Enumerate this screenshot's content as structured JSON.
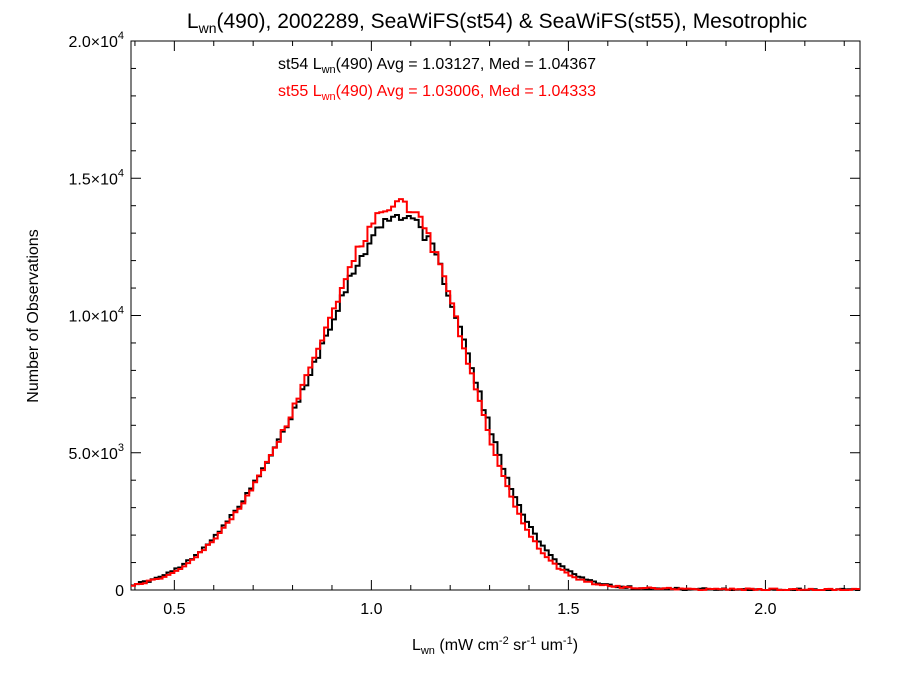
{
  "chart_data": {
    "type": "histogram-step",
    "title": {
      "pre": "L",
      "sub": "wn",
      "post": "(490), 2002289, SeaWiFS(st54) & SeaWiFS(st55), Mesotrophic"
    },
    "xlabel": {
      "pre": "L",
      "sub": "wn",
      "mid1": " (mW cm",
      "sup1": "-2",
      "mid2": " sr",
      "sup2": "-1",
      "mid3": " um",
      "sup3": "-1",
      "post": ")"
    },
    "ylabel": "Number of Observations",
    "xlim": [
      0.39,
      2.24
    ],
    "ylim": [
      0,
      20000
    ],
    "x_ticks": [
      {
        "value": 0.5,
        "label": "0.5"
      },
      {
        "value": 1.0,
        "label": "1.0"
      },
      {
        "value": 1.5,
        "label": "1.5"
      },
      {
        "value": 2.0,
        "label": "2.0"
      }
    ],
    "y_ticks": [
      {
        "value": 0,
        "mant": "0",
        "exp": ""
      },
      {
        "value": 5000,
        "mant": "5.0×10",
        "exp": "3"
      },
      {
        "value": 10000,
        "mant": "1.0×10",
        "exp": "4"
      },
      {
        "value": 15000,
        "mant": "1.5×10",
        "exp": "4"
      },
      {
        "value": 20000,
        "mant": "2.0×10",
        "exp": "4"
      }
    ],
    "annotations": [
      {
        "pre": "st54 L",
        "sub": "wn",
        "post": "(490) Avg = 1.03127, Med = 1.04367",
        "color": "#000000"
      },
      {
        "pre": "st55 L",
        "sub": "wn",
        "post": "(490) Avg = 1.03006, Med = 1.04333",
        "color": "#ff0000"
      }
    ],
    "series": [
      {
        "color": "#000000",
        "peak": 13600,
        "mean": 1.08,
        "sigma_left": 0.215,
        "sigma_right": 0.17,
        "shoulder": 900
      },
      {
        "color": "#ff0000",
        "peak": 14000,
        "mean": 1.075,
        "sigma_left": 0.21,
        "sigma_right": 0.165,
        "shoulder": 850
      }
    ],
    "bin_width": 0.01,
    "grid": false
  }
}
